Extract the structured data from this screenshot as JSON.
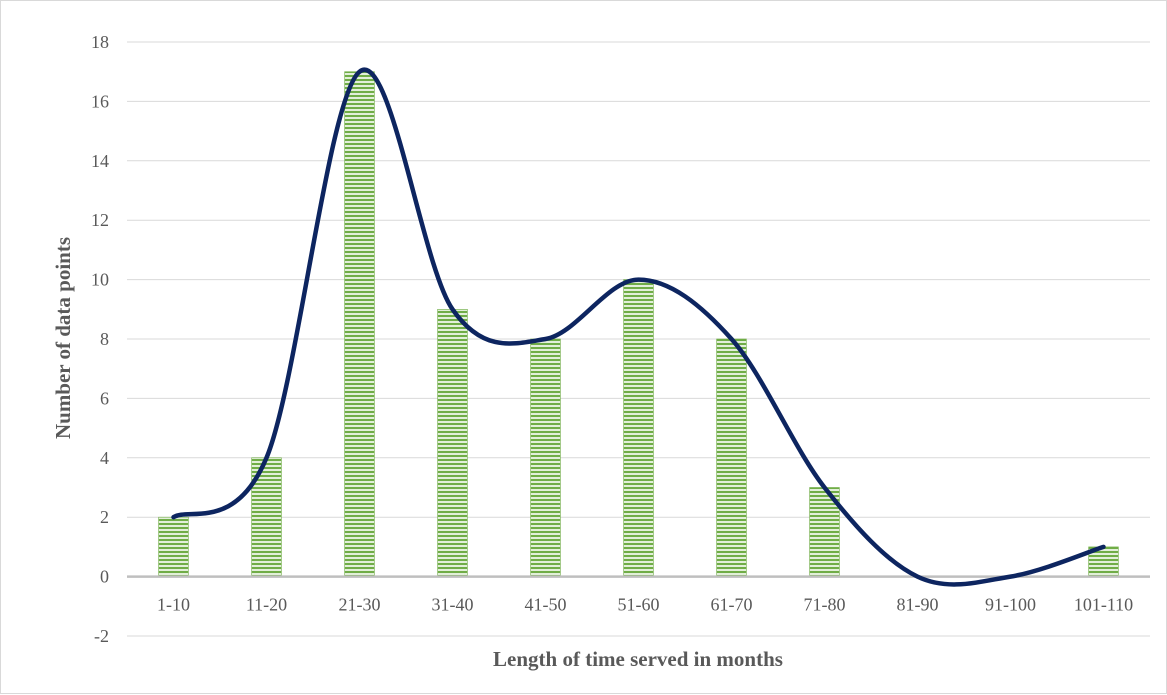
{
  "chart_data": {
    "type": "bar",
    "title": "",
    "xlabel": "Length of time served in months",
    "ylabel": "Number of data points",
    "categories": [
      "1-10",
      "11-20",
      "21-30",
      "31-40",
      "41-50",
      "51-60",
      "61-70",
      "71-80",
      "81-90",
      "91-100",
      "101-110"
    ],
    "values": [
      2,
      4,
      17,
      9,
      8,
      10,
      8,
      3,
      0,
      0,
      1
    ],
    "ylim": [
      -2,
      18
    ],
    "yticks": [
      -2,
      0,
      2,
      4,
      6,
      8,
      10,
      12,
      14,
      16,
      18
    ],
    "ytick_labels": [
      "-2",
      "0",
      "2",
      "4",
      "6",
      "8",
      "10",
      "12",
      "14",
      "16",
      "18"
    ],
    "grid": true,
    "overlay": {
      "type": "smoothed-line",
      "values": [
        2,
        4,
        17,
        9,
        8,
        10,
        8,
        3,
        0,
        0,
        1
      ]
    },
    "colors": {
      "bar_fill": "#70ad47",
      "bar_stripe": "#e2efd9",
      "line": "#0d2560",
      "grid": "#d9d9d9",
      "zero_axis": "#bfbfbf",
      "text": "#595959"
    }
  }
}
